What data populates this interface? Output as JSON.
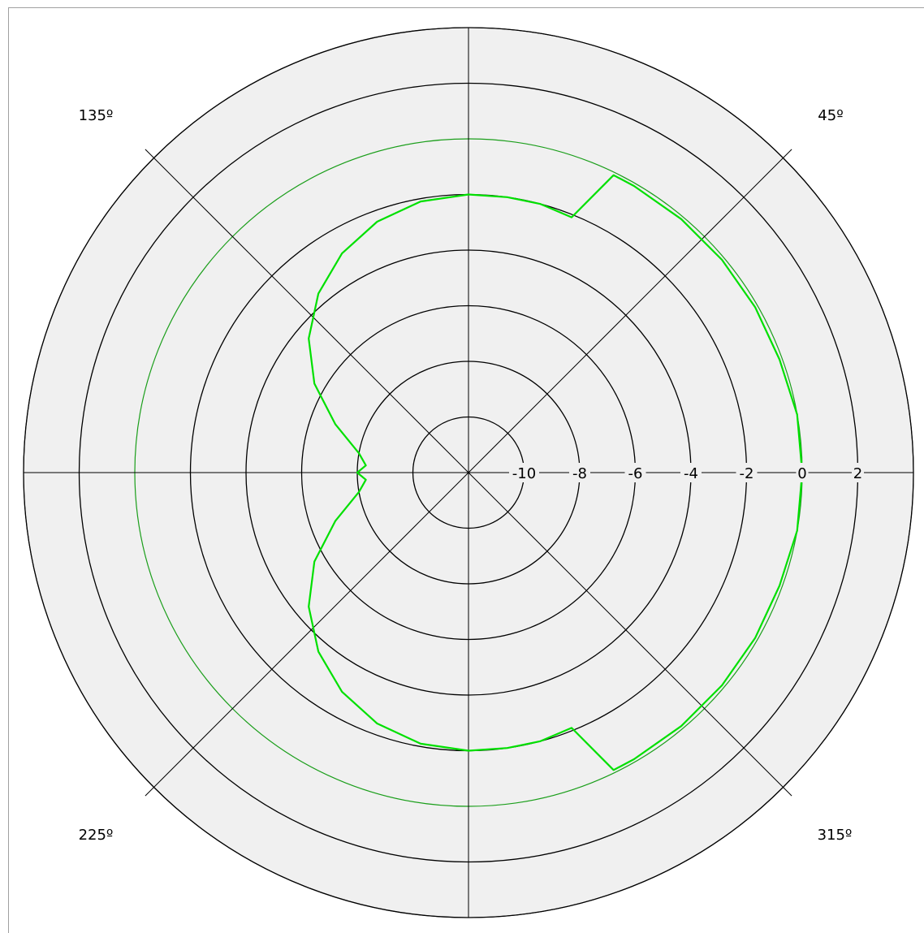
{
  "chart_data": {
    "type": "polar-line",
    "title": "",
    "radial_axis": {
      "min": -12,
      "max": 4,
      "ring_values": [
        -10,
        -8,
        -6,
        -4,
        -2,
        0,
        2,
        4
      ],
      "labelled_ticks": [
        -10,
        -8,
        -6,
        -4,
        -2,
        0,
        2
      ],
      "tick_labels": [
        "-10",
        "-8",
        "-6",
        "-4",
        "-2",
        "0",
        "2"
      ],
      "reference_ring": 0
    },
    "angular_axis": {
      "spokes_deg": [
        0,
        45,
        90,
        135,
        180,
        225,
        270,
        315
      ],
      "labels": [
        {
          "angle": 45,
          "text": "45º"
        },
        {
          "angle": 135,
          "text": "135º"
        },
        {
          "angle": 225,
          "text": "225º"
        },
        {
          "angle": 315,
          "text": "315º"
        }
      ]
    },
    "series": [
      {
        "color": "#00e000",
        "points": [
          {
            "theta": 0,
            "r": 0.0
          },
          {
            "theta": 10,
            "r": 0.0
          },
          {
            "theta": 20,
            "r": -0.1
          },
          {
            "theta": 30,
            "r": -0.1
          },
          {
            "theta": 40,
            "r": -0.1
          },
          {
            "theta": 50,
            "r": -0.1
          },
          {
            "theta": 60,
            "r": -0.1
          },
          {
            "theta": 64,
            "r": -0.1
          },
          {
            "theta": 68,
            "r": -2.1
          },
          {
            "theta": 75,
            "r": -2.0
          },
          {
            "theta": 82,
            "r": -2.0
          },
          {
            "theta": 90,
            "r": -2.0
          },
          {
            "theta": 100,
            "r": -2.1
          },
          {
            "theta": 110,
            "r": -2.4
          },
          {
            "theta": 120,
            "r": -2.9
          },
          {
            "theta": 130,
            "r": -3.6
          },
          {
            "theta": 140,
            "r": -4.5
          },
          {
            "theta": 150,
            "r": -5.6
          },
          {
            "theta": 160,
            "r": -6.9
          },
          {
            "theta": 170,
            "r": -8.0
          },
          {
            "theta": 176,
            "r": -8.3
          },
          {
            "theta": 180,
            "r": -8.0
          },
          {
            "theta": 184,
            "r": -8.3
          },
          {
            "theta": 190,
            "r": -8.0
          },
          {
            "theta": 200,
            "r": -6.9
          },
          {
            "theta": 210,
            "r": -5.6
          },
          {
            "theta": 220,
            "r": -4.5
          },
          {
            "theta": 230,
            "r": -3.6
          },
          {
            "theta": 240,
            "r": -2.9
          },
          {
            "theta": 250,
            "r": -2.4
          },
          {
            "theta": 260,
            "r": -2.1
          },
          {
            "theta": 270,
            "r": -2.0
          },
          {
            "theta": 278,
            "r": -2.0
          },
          {
            "theta": 285,
            "r": -2.0
          },
          {
            "theta": 292,
            "r": -2.1
          },
          {
            "theta": 296,
            "r": -0.1
          },
          {
            "theta": 300,
            "r": -0.1
          },
          {
            "theta": 310,
            "r": -0.1
          },
          {
            "theta": 320,
            "r": -0.1
          },
          {
            "theta": 330,
            "r": -0.1
          },
          {
            "theta": 340,
            "r": -0.1
          },
          {
            "theta": 350,
            "r": 0.0
          },
          {
            "theta": 360,
            "r": 0.0
          }
        ]
      }
    ],
    "colors": {
      "plot_background": "#f0f0f0",
      "ring": "#000000",
      "reference_ring": "#1a9e1a",
      "series": "#00e000"
    },
    "grid": true
  }
}
